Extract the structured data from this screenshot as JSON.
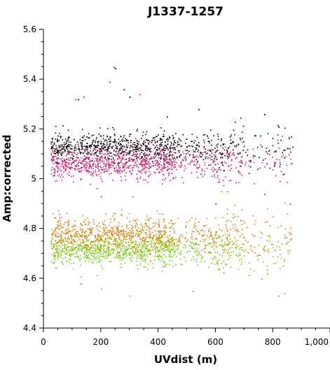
{
  "chart_data": {
    "type": "scatter",
    "title": "J1337-1257",
    "xlabel": "UVdist (m)",
    "ylabel": "Amp:corrected",
    "xlim": [
      0,
      1000
    ],
    "ylim": [
      4.4,
      5.6
    ],
    "x_ticks": [
      "0",
      "200",
      "400",
      "600",
      "800",
      "1,000"
    ],
    "y_ticks": [
      "4.4",
      "4.6",
      "4.8",
      "5",
      "5.2",
      "5.4",
      "5.6"
    ],
    "grid": false,
    "legend": "none",
    "series": [
      {
        "color": "#000000",
        "x_range": [
          25,
          870
        ],
        "center": 5.125,
        "spread": 0.03,
        "outliers": [
          [
            250,
            5.445
          ],
          [
            120,
            5.32
          ],
          [
            280,
            5.36
          ],
          [
            300,
            5.33
          ],
          [
            540,
            5.28
          ],
          [
            430,
            5.25
          ],
          [
            770,
            5.26
          ],
          [
            820,
            5.21
          ]
        ]
      },
      {
        "color": "#e0106e",
        "x_range": [
          25,
          870
        ],
        "center": 5.065,
        "spread": 0.03,
        "outliers": [
          [
            245,
            5.45
          ],
          [
            230,
            5.39
          ],
          [
            335,
            5.34
          ],
          [
            140,
            5.33
          ],
          [
            110,
            5.32
          ],
          [
            200,
            4.93
          ],
          [
            600,
            4.9
          ],
          [
            860,
            4.9
          ],
          [
            770,
            4.94
          ]
        ]
      },
      {
        "color": "#e07800",
        "x_range": [
          25,
          870
        ],
        "center": 4.775,
        "spread": 0.035,
        "outliers": [
          [
            310,
            4.93
          ],
          [
            640,
            4.95
          ],
          [
            520,
            4.55
          ],
          [
            820,
            4.53
          ],
          [
            130,
            4.58
          ],
          [
            760,
            4.6
          ]
        ]
      },
      {
        "color": "#70d000",
        "x_range": [
          25,
          870
        ],
        "center": 4.715,
        "spread": 0.03,
        "outliers": [
          [
            620,
            4.95
          ],
          [
            640,
            4.88
          ],
          [
            300,
            4.53
          ],
          [
            840,
            4.54
          ],
          [
            200,
            4.56
          ],
          [
            780,
            4.62
          ]
        ]
      }
    ]
  }
}
